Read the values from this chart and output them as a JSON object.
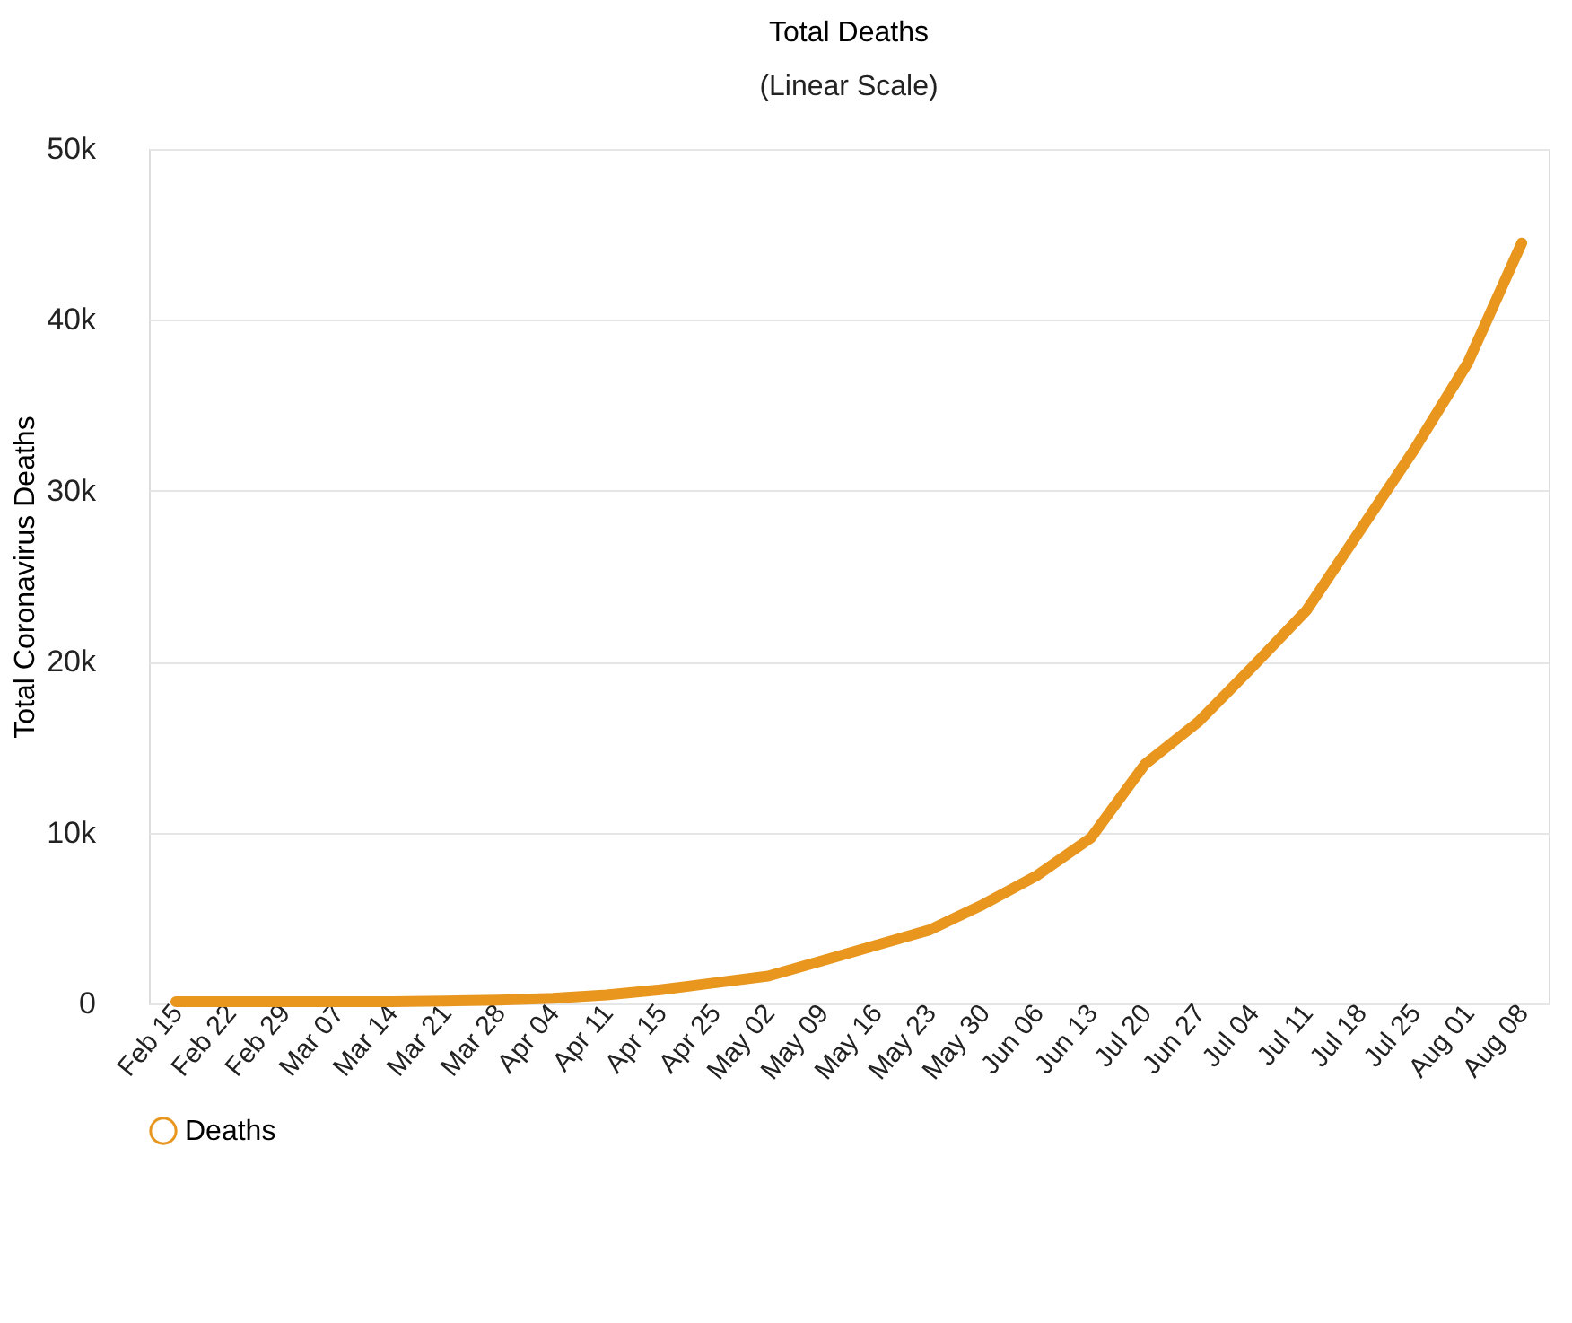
{
  "chart_data": {
    "type": "line",
    "title": "Total Deaths",
    "subtitle": "(Linear Scale)",
    "ylabel": "Total Coronavirus Deaths",
    "categories": [
      "Feb 15",
      "Feb 22",
      "Feb 29",
      "Mar 07",
      "Mar 14",
      "Mar 21",
      "Mar 28",
      "Apr 04",
      "Apr 11",
      "Apr 15",
      "Apr 25",
      "May 02",
      "May 09",
      "May 16",
      "May 23",
      "May 30",
      "Jun 06",
      "Jun 13",
      "Jul 20",
      "Jun 27",
      "Jul 04",
      "Jul 11",
      "Jul 18",
      "Jul 25",
      "Aug 01",
      "Aug 08"
    ],
    "series": [
      {
        "name": "Deaths",
        "color": "#e8961e",
        "values": [
          100,
          100,
          100,
          100,
          100,
          150,
          200,
          300,
          500,
          800,
          1200,
          1600,
          2500,
          3400,
          4300,
          5800,
          7500,
          9700,
          14000,
          16500,
          19700,
          23000,
          27700,
          32400,
          37500,
          44500
        ]
      }
    ],
    "ylim": [
      0,
      50000
    ],
    "yticks": [
      {
        "value": 0,
        "label": "0"
      },
      {
        "value": 10000,
        "label": "10k"
      },
      {
        "value": 20000,
        "label": "20k"
      },
      {
        "value": 30000,
        "label": "30k"
      },
      {
        "value": 40000,
        "label": "40k"
      },
      {
        "value": 50000,
        "label": "50k"
      }
    ],
    "grid": "y",
    "legend": "bottom",
    "marker": "none",
    "line_style": "solid"
  }
}
